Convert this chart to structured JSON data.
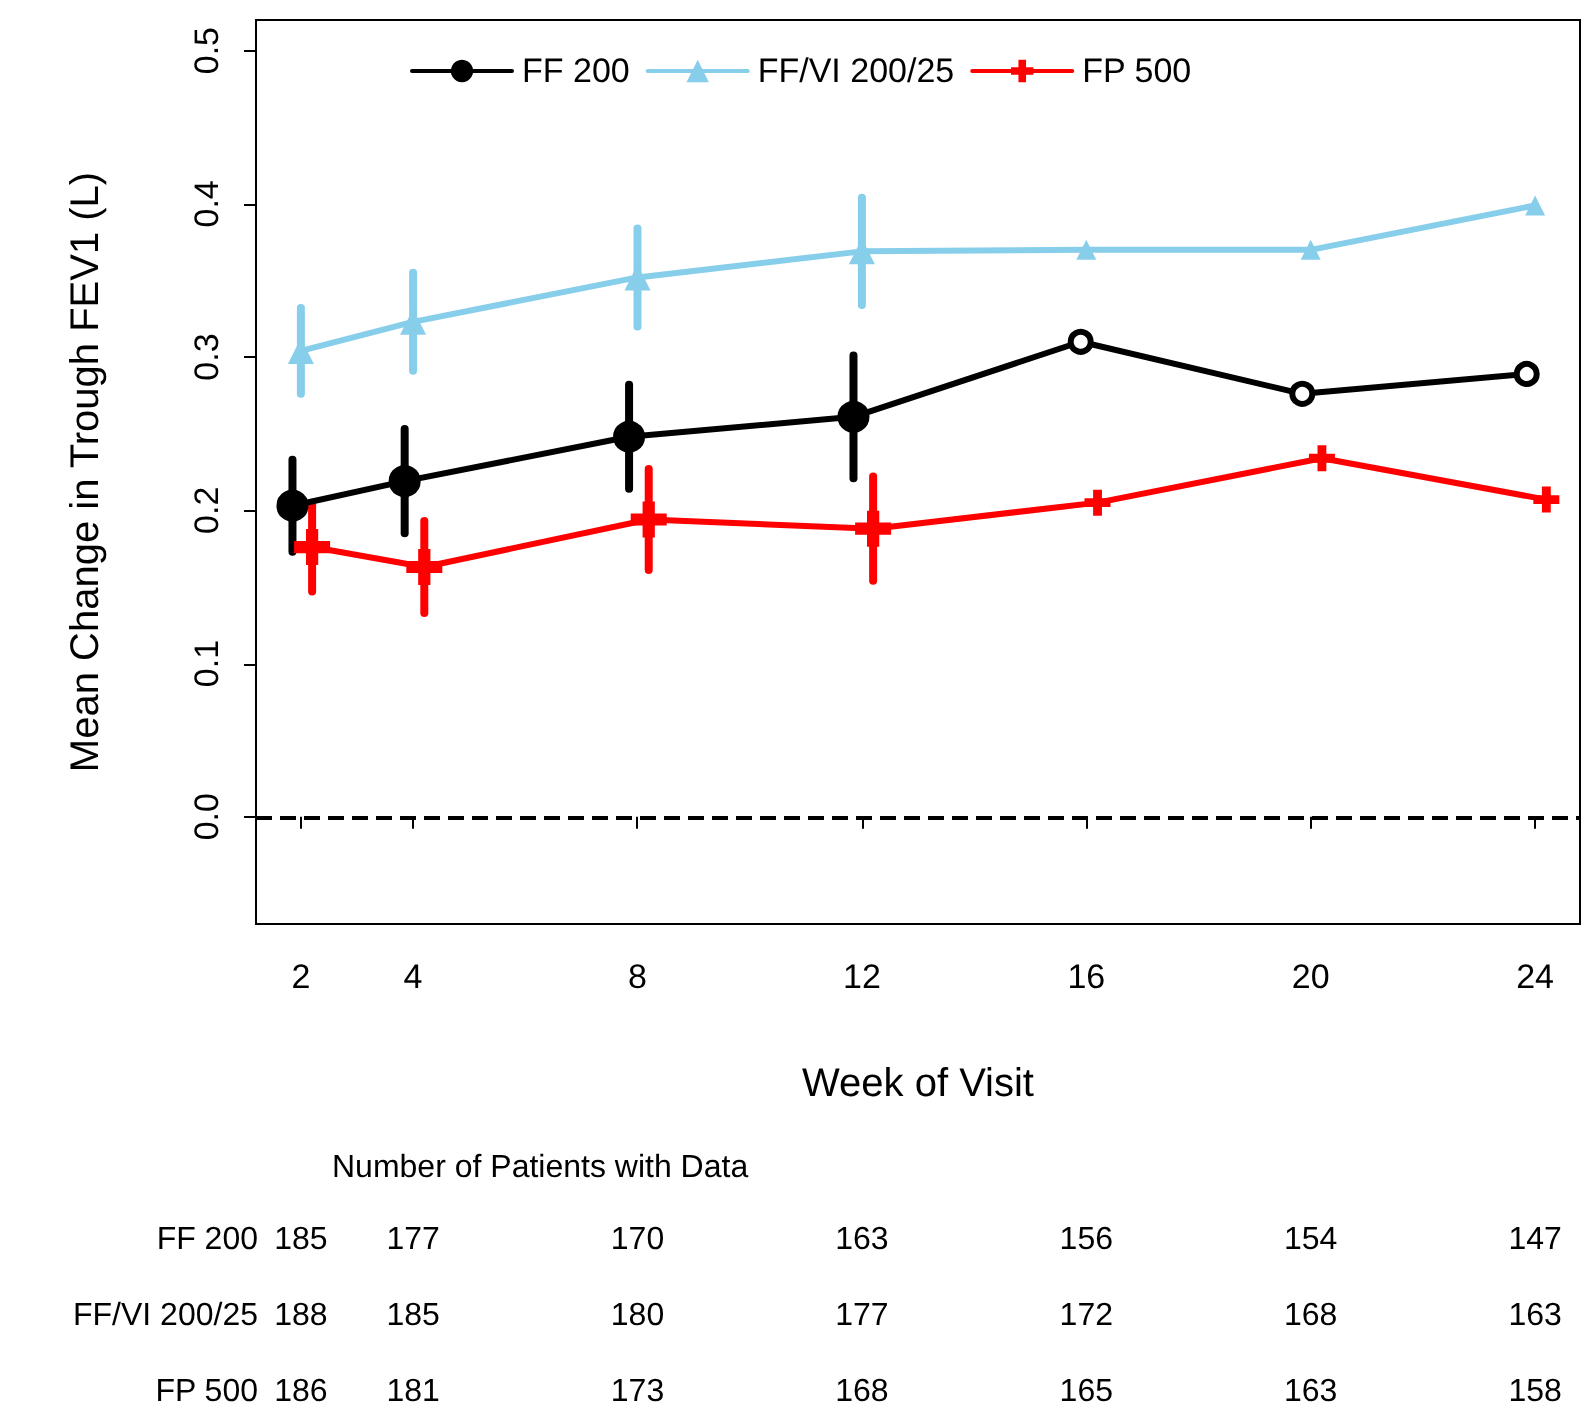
{
  "chart_data": {
    "type": "line",
    "xlabel": "Week of Visit",
    "ylabel": "Mean Change in Trough FEV1 (L)",
    "xlim": [
      1.2,
      24.8
    ],
    "xticks": [
      2,
      4,
      8,
      12,
      16,
      20,
      24
    ],
    "ylim": [
      -0.07,
      0.52
    ],
    "yticks": [
      {
        "value": 0,
        "label": "0.0"
      },
      0.1,
      0.2,
      0.3,
      0.4,
      0.5
    ],
    "grid": false,
    "legend": "top",
    "line_style": "solid",
    "series": [
      {
        "name": "FF 200",
        "color": "#000000",
        "marker": "circle",
        "x": [
          1.85,
          3.85,
          7.85,
          11.85,
          15.9,
          19.85,
          23.85
        ],
        "values": [
          0.203,
          0.219,
          0.248,
          0.261,
          0.31,
          0.276,
          0.289
        ],
        "errors": [
          0.03,
          0.034,
          0.034,
          0.04,
          null,
          null,
          null
        ]
      },
      {
        "name": "FF/VI 200/25",
        "color": "#87ceeb",
        "marker": "triangle",
        "x": [
          2,
          4,
          8,
          12,
          16,
          20,
          24
        ],
        "values": [
          0.304,
          0.323,
          0.352,
          0.369,
          0.37,
          0.37,
          0.399
        ],
        "errors": [
          0.028,
          0.032,
          0.032,
          0.035,
          null,
          null,
          null
        ]
      },
      {
        "name": "FP 500",
        "color": "#ff0000",
        "marker": "cross",
        "x": [
          2.2,
          4.2,
          8.2,
          12.2,
          16.2,
          20.2,
          24.2
        ],
        "values": [
          0.176,
          0.163,
          0.194,
          0.188,
          0.205,
          0.234,
          0.207
        ],
        "errors": [
          0.029,
          0.03,
          0.033,
          0.034,
          null,
          null,
          null
        ]
      }
    ],
    "ref_lines": [
      {
        "axis": "y",
        "value": 0,
        "color": "#000000",
        "line_style": "dashed"
      }
    ],
    "annotations": [
      "Number of Patients with Data",
      "FF 200",
      "185",
      "177",
      "170",
      "163",
      "156",
      "154",
      "147",
      "FF/VI 200/25",
      "188",
      "185",
      "180",
      "177",
      "172",
      "168",
      "163",
      "FP 500",
      "186",
      "181",
      "173",
      "168",
      "165",
      "163",
      "158"
    ]
  }
}
